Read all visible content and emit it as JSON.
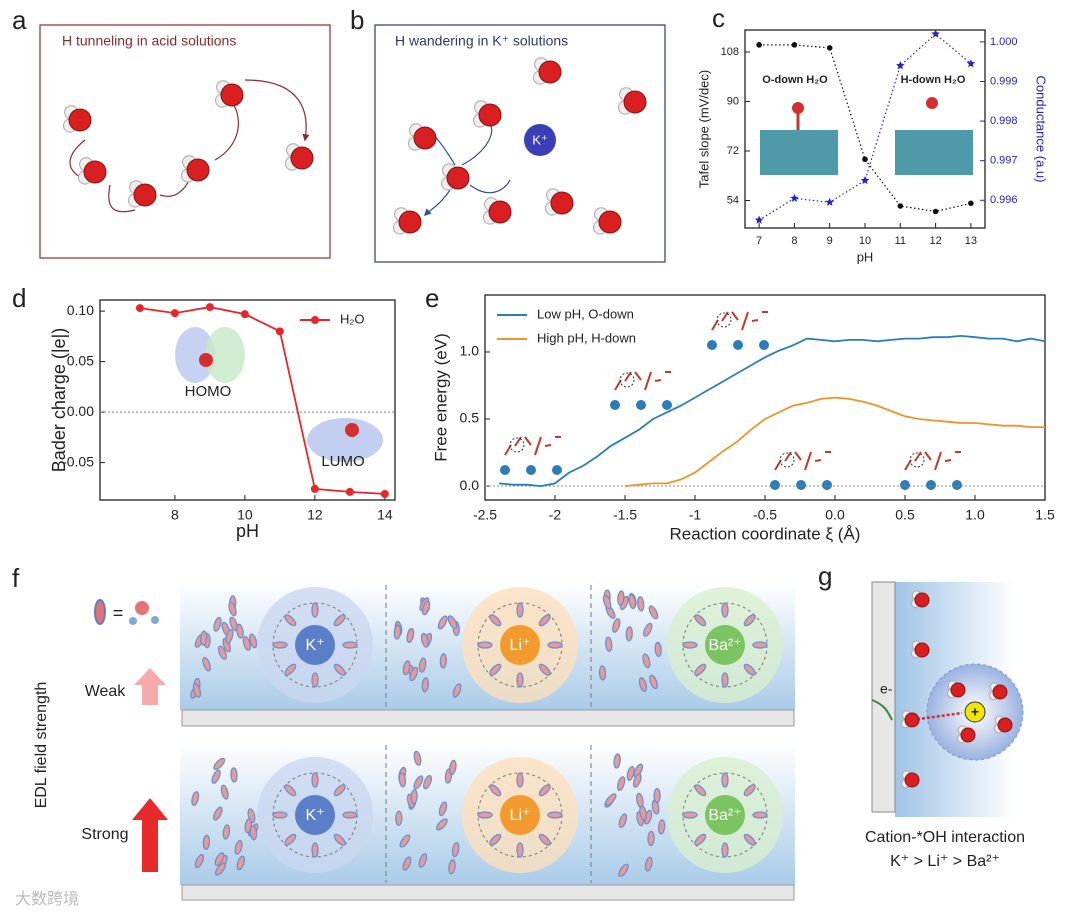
{
  "panels": {
    "a": {
      "label": "a",
      "title": "H tunneling in acid solutions"
    },
    "b": {
      "label": "b",
      "title": "H wandering in K⁺ solutions",
      "ion": "K⁺"
    },
    "f": {
      "label": "f",
      "axis_label": "EDL field strength",
      "rows": [
        "Weak",
        "Strong"
      ],
      "ions": [
        "K⁺",
        "Li⁺",
        "Ba²⁺"
      ],
      "equals": "="
    },
    "g": {
      "label": "g",
      "electron": "e-",
      "charge": "+",
      "caption": "Cation-*OH interaction",
      "order": "K⁺ > Li⁺ > Ba²⁺"
    }
  },
  "watermark": "大数跨境",
  "chart_data": [
    {
      "type": "scatter",
      "label": "c",
      "trend_line": true,
      "x": [
        7,
        8,
        9,
        10,
        11,
        12,
        13
      ],
      "xlim": [
        6.6,
        13.4
      ],
      "xticks": [
        7,
        8,
        9,
        10,
        11,
        12,
        13
      ],
      "ylim": [
        44,
        116
      ],
      "yticks": [
        54,
        72,
        90,
        108
      ],
      "y2lim": [
        0.9953,
        1.0003
      ],
      "y2ticks": [
        0.996,
        0.997,
        0.998,
        0.999,
        {
          "value": 1,
          "label": "1.000"
        }
      ],
      "x_label": "pH",
      "y_label": "Tafel slope (mV/dec)",
      "y2_label": "Conductance (a.u)",
      "annotations": [
        "O-down H₂O",
        "H-down H₂O"
      ],
      "series": [
        {
          "color": "#111111",
          "marker": "circle",
          "values": [
            110.6,
            110.6,
            109.5,
            69,
            52,
            50,
            53
          ]
        },
        {
          "color": "#2222cc",
          "marker": "star",
          "axis": "y2",
          "values": [
            0.9955,
            0.99605,
            0.99595,
            0.9965,
            0.9994,
            1.0002,
            0.99945
          ]
        }
      ]
    },
    {
      "type": "line",
      "label": "d",
      "legend": "upper right",
      "reference_line": 0,
      "x": [
        7,
        8,
        9,
        10,
        11,
        12,
        13,
        14
      ],
      "xlim": [
        5.86,
        14.29
      ],
      "xticks": [
        8,
        10,
        12,
        14
      ],
      "ylim": [
        -0.087,
        0.111
      ],
      "yticks": [
        {
          "value": -0.05,
          "label": "-0.05"
        },
        {
          "value": 0,
          "label": "0.00"
        },
        0.05,
        {
          "value": 0.1,
          "label": "0.10"
        }
      ],
      "x_label": "pH",
      "y_label": "Bader charge (|e|)",
      "annotations": [
        "HOMO",
        "LUMO"
      ],
      "series": [
        {
          "name": "H₂O",
          "color": "#e8262a",
          "marker": "circle",
          "values": [
            0.103,
            0.098,
            0.104,
            0.097,
            0.08,
            -0.076,
            -0.079,
            -0.081
          ]
        }
      ]
    },
    {
      "type": "line",
      "label": "e",
      "legend": "upper left",
      "reference_line": 0,
      "xlim": [
        -2.5,
        1.5
      ],
      "xticks": [
        -2.5,
        -2,
        -1.5,
        -1,
        -0.5,
        {
          "value": 0,
          "label": "0.0"
        },
        0.5,
        {
          "value": 1,
          "label": "1.0"
        },
        1.5
      ],
      "ylim": [
        -0.104,
        1.425
      ],
      "yticks": [
        {
          "value": 0,
          "label": "0.0"
        },
        0.5,
        {
          "value": 1,
          "label": "1.0"
        }
      ],
      "x_label": "Reaction coordinate ξ (Å)",
      "y_label": "Free energy (eV)",
      "annotations": [],
      "series": [
        {
          "name": "Low pH,  O-down",
          "color": "#2a7db8",
          "x": [
            -2.4,
            -2.3,
            -2.2,
            -2.1,
            -2.0,
            -1.9,
            -1.8,
            -1.7,
            -1.6,
            -1.5,
            -1.4,
            -1.3,
            -1.2,
            -1.1,
            -1.0,
            -0.9,
            -0.8,
            -0.7,
            -0.6,
            -0.5,
            -0.4,
            -0.3,
            -0.2,
            -0.1,
            0.0,
            0.1,
            0.2,
            0.3,
            0.4,
            0.5,
            0.6,
            0.7,
            0.8,
            0.9,
            1.0,
            1.1,
            1.2,
            1.3,
            1.4,
            1.5
          ],
          "values": [
            0.02,
            0.01,
            0.01,
            0.0,
            0.02,
            0.1,
            0.15,
            0.22,
            0.3,
            0.36,
            0.42,
            0.5,
            0.55,
            0.6,
            0.66,
            0.72,
            0.78,
            0.84,
            0.9,
            0.96,
            1.01,
            1.05,
            1.1,
            1.09,
            1.08,
            1.09,
            1.09,
            1.08,
            1.09,
            1.1,
            1.1,
            1.11,
            1.11,
            1.12,
            1.11,
            1.1,
            1.1,
            1.08,
            1.1,
            1.08
          ]
        },
        {
          "name": "High pH, H-down",
          "color": "#f0922b",
          "x": [
            -1.5,
            -1.4,
            -1.3,
            -1.2,
            -1.1,
            -1.0,
            -0.9,
            -0.8,
            -0.7,
            -0.6,
            -0.5,
            -0.4,
            -0.3,
            -0.2,
            -0.1,
            0.0,
            0.1,
            0.2,
            0.3,
            0.4,
            0.5,
            0.6,
            0.7,
            0.8,
            0.9,
            1.0,
            1.1,
            1.2,
            1.3,
            1.4,
            1.5
          ],
          "values": [
            0.0,
            0.01,
            0.02,
            0.02,
            0.05,
            0.1,
            0.18,
            0.26,
            0.33,
            0.42,
            0.5,
            0.55,
            0.6,
            0.62,
            0.65,
            0.66,
            0.65,
            0.63,
            0.6,
            0.56,
            0.52,
            0.5,
            0.49,
            0.48,
            0.47,
            0.47,
            0.46,
            0.45,
            0.45,
            0.44,
            0.44
          ]
        }
      ]
    }
  ]
}
